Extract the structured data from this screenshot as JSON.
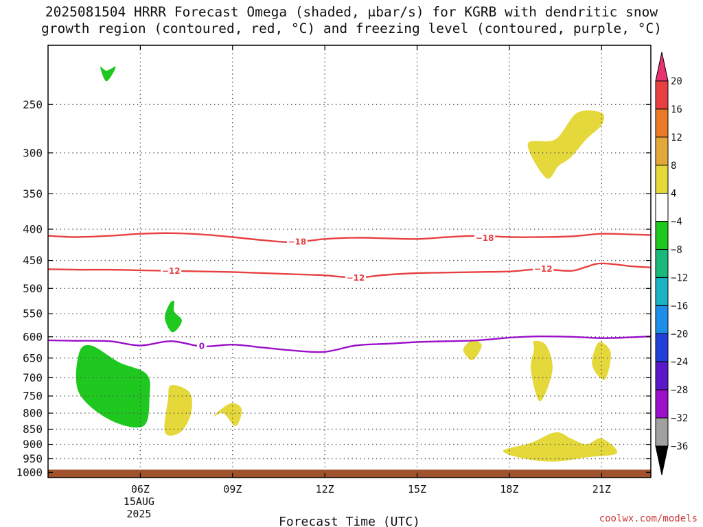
{
  "title_line1": "2025081504 HRRR Forecast Omega (shaded, μbar/s) for KGRB with dendritic snow",
  "title_line2": "growth region (contoured, red, °C) and freezing level (contoured, purple, °C)",
  "watermark": "coolwx.com/models",
  "chart_data": {
    "type": "heatmap",
    "title": "2025081504 HRRR Forecast Omega (shaded, μbar/s) for KGRB with dendritic snow growth region (contoured, red, °C) and freezing level (contoured, purple, °C)",
    "xlabel": "Forecast Time (UTC)",
    "ylabel": "",
    "x_unit": "hours UTC on 15AUG2025",
    "xlim": [
      3.0,
      22.6
    ],
    "y_levels_hpa": [
      250,
      300,
      350,
      400,
      450,
      500,
      550,
      600,
      650,
      700,
      750,
      800,
      850,
      900,
      950,
      1000
    ],
    "ylim_hpa": [
      200,
      1020
    ],
    "x_ticks": [
      {
        "value": 6,
        "label": "06Z",
        "sub1": "15AUG",
        "sub2": "2025"
      },
      {
        "value": 9,
        "label": "09Z"
      },
      {
        "value": 12,
        "label": "12Z"
      },
      {
        "value": 15,
        "label": "15Z"
      },
      {
        "value": 18,
        "label": "18Z"
      },
      {
        "value": 21,
        "label": "21Z"
      }
    ],
    "ground_from_hpa": 990,
    "ground_color": "#a0522d",
    "grid": true,
    "colorbar": {
      "position": "right",
      "ticks": [
        "20",
        "16",
        "12",
        "8",
        "4",
        "−4",
        "−8",
        "−12",
        "−16",
        "−20",
        "−24",
        "−28",
        "−32",
        "−36"
      ],
      "colors": [
        "#e8326e",
        "#e84040",
        "#e87a28",
        "#e3a83a",
        "#e5d83a",
        "#ffffff",
        "#1ec81e",
        "#1ab87a",
        "#19b3c4",
        "#1e8ee8",
        "#2040d8",
        "#5a18c8",
        "#9c10c8",
        "#a0a0a0",
        "#000000"
      ]
    },
    "contours": [
      {
        "name": "dendritic snow growth -18",
        "color": "#e84040",
        "labels": [
          {
            "text": "−18",
            "x": 11.1,
            "p": 419
          },
          {
            "text": "−18",
            "x": 17.2,
            "p": 413
          }
        ],
        "points": [
          [
            3.0,
            410
          ],
          [
            3.9,
            412
          ],
          [
            5.0,
            410
          ],
          [
            6.0,
            407
          ],
          [
            7.0,
            406
          ],
          [
            8.0,
            408
          ],
          [
            9.0,
            412
          ],
          [
            10.0,
            417
          ],
          [
            11.0,
            420
          ],
          [
            12.0,
            415
          ],
          [
            13.0,
            413
          ],
          [
            14.0,
            414
          ],
          [
            15.0,
            415
          ],
          [
            16.0,
            412
          ],
          [
            17.0,
            410
          ],
          [
            18.0,
            412
          ],
          [
            19.0,
            412
          ],
          [
            20.0,
            411
          ],
          [
            21.0,
            407
          ],
          [
            22.0,
            408
          ],
          [
            22.6,
            409
          ]
        ]
      },
      {
        "name": "dendritic snow growth -12",
        "color": "#e84040",
        "labels": [
          {
            "text": "−12",
            "x": 7.0,
            "p": 468
          },
          {
            "text": "−12",
            "x": 13.0,
            "p": 480
          },
          {
            "text": "−12",
            "x": 19.1,
            "p": 464
          }
        ],
        "points": [
          [
            3.0,
            465
          ],
          [
            4.0,
            466
          ],
          [
            5.0,
            466
          ],
          [
            6.0,
            467
          ],
          [
            7.0,
            468
          ],
          [
            8.0,
            469
          ],
          [
            9.0,
            470
          ],
          [
            10.0,
            472
          ],
          [
            11.0,
            474
          ],
          [
            12.0,
            476
          ],
          [
            13.0,
            480
          ],
          [
            14.0,
            475
          ],
          [
            15.0,
            472
          ],
          [
            16.0,
            471
          ],
          [
            17.0,
            470
          ],
          [
            18.0,
            469
          ],
          [
            19.0,
            465
          ],
          [
            20.0,
            468
          ],
          [
            20.5,
            461
          ],
          [
            21.0,
            455
          ],
          [
            22.0,
            460
          ],
          [
            22.6,
            462
          ]
        ]
      },
      {
        "name": "freezing level 0",
        "color": "#9a10c8",
        "labels": [
          {
            "text": "0",
            "x": 8.0,
            "p": 621
          }
        ],
        "points": [
          [
            3.0,
            608
          ],
          [
            3.8,
            609
          ],
          [
            5.0,
            610
          ],
          [
            6.0,
            620
          ],
          [
            7.0,
            610
          ],
          [
            8.0,
            622
          ],
          [
            9.0,
            618
          ],
          [
            10.0,
            625
          ],
          [
            11.0,
            632
          ],
          [
            12.0,
            635
          ],
          [
            13.0,
            620
          ],
          [
            14.0,
            616
          ],
          [
            15.0,
            612
          ],
          [
            16.0,
            610
          ],
          [
            17.0,
            608
          ],
          [
            18.0,
            602
          ],
          [
            19.0,
            599
          ],
          [
            20.0,
            600
          ],
          [
            21.0,
            603
          ],
          [
            22.0,
            601
          ],
          [
            22.6,
            599
          ]
        ]
      }
    ],
    "shaded_regions": [
      {
        "omega_bin": "-8 to -4",
        "color": "#1ec81e",
        "points": [
          [
            4.9,
            220
          ],
          [
            5.2,
            217
          ],
          [
            4.9,
            229
          ],
          [
            4.7,
            217
          ]
        ]
      },
      {
        "omega_bin": "-8 to -4",
        "color": "#1ec81e",
        "points": [
          [
            7.1,
            545
          ],
          [
            7.35,
            565
          ],
          [
            7.05,
            590
          ],
          [
            6.8,
            560
          ],
          [
            6.95,
            530
          ],
          [
            7.1,
            525
          ]
        ]
      },
      {
        "omega_bin": "-8 to -4",
        "color": "#1ec81e",
        "points": [
          [
            4.0,
            640
          ],
          [
            4.4,
            620
          ],
          [
            5.3,
            660
          ],
          [
            6.2,
            690
          ],
          [
            6.3,
            750
          ],
          [
            6.1,
            840
          ],
          [
            5.0,
            820
          ],
          [
            4.0,
            740
          ]
        ]
      },
      {
        "omega_bin": "4 to 8",
        "color": "#e5d83a",
        "points": [
          [
            19.5,
            285
          ],
          [
            20.2,
            258
          ],
          [
            21.0,
            258
          ],
          [
            21.0,
            270
          ],
          [
            20.5,
            285
          ],
          [
            20.0,
            305
          ],
          [
            19.6,
            315
          ],
          [
            19.2,
            330
          ],
          [
            18.6,
            290
          ]
        ]
      },
      {
        "omega_bin": "4 to 8",
        "color": "#e5d83a",
        "points": [
          [
            7.0,
            720
          ],
          [
            7.6,
            740
          ],
          [
            7.65,
            800
          ],
          [
            7.3,
            860
          ],
          [
            6.8,
            860
          ],
          [
            6.9,
            760
          ]
        ]
      },
      {
        "omega_bin": "4 to 8",
        "color": "#e5d83a",
        "points": [
          [
            9.0,
            770
          ],
          [
            9.3,
            790
          ],
          [
            9.1,
            840
          ],
          [
            8.7,
            800
          ],
          [
            8.4,
            810
          ],
          [
            8.6,
            790
          ]
        ]
      },
      {
        "omega_bin": "4 to 8",
        "color": "#e5d83a",
        "points": [
          [
            16.8,
            608
          ],
          [
            17.1,
            620
          ],
          [
            16.8,
            655
          ],
          [
            16.5,
            630
          ]
        ]
      },
      {
        "omega_bin": "4 to 8",
        "color": "#e5d83a",
        "points": [
          [
            18.8,
            610
          ],
          [
            19.2,
            620
          ],
          [
            19.4,
            680
          ],
          [
            19.0,
            765
          ],
          [
            18.7,
            680
          ],
          [
            18.8,
            630
          ]
        ]
      },
      {
        "omega_bin": "4 to 8",
        "color": "#e5d83a",
        "points": [
          [
            21.0,
            612
          ],
          [
            21.3,
            640
          ],
          [
            21.1,
            705
          ],
          [
            20.7,
            670
          ],
          [
            20.8,
            625
          ]
        ]
      },
      {
        "omega_bin": "4 to 8",
        "color": "#e5d83a",
        "points": [
          [
            17.8,
            922
          ],
          [
            18.7,
            895
          ],
          [
            19.5,
            860
          ],
          [
            20.0,
            880
          ],
          [
            20.5,
            900
          ],
          [
            21.0,
            880
          ],
          [
            21.5,
            930
          ],
          [
            20.5,
            945
          ],
          [
            19.5,
            960
          ],
          [
            18.5,
            950
          ]
        ]
      }
    ]
  }
}
